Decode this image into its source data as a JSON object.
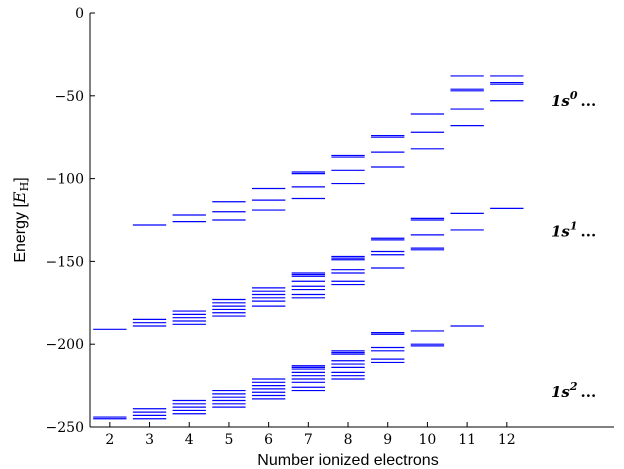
{
  "chart_data": {
    "type": "scatter",
    "mark": "horizontal level lines",
    "xlabel": "Number ionized electrons",
    "ylabel_text": "Energy [",
    "ylabel_unit_main": "E",
    "ylabel_unit_sub": "H",
    "ylabel_close": "]",
    "ylim": [
      -250,
      0
    ],
    "xlim": [
      1.5,
      14.7
    ],
    "x_ticks": [
      2,
      3,
      4,
      5,
      6,
      7,
      8,
      9,
      10,
      11,
      12
    ],
    "y_ticks": [
      0,
      -50,
      -100,
      -150,
      -200,
      -250
    ],
    "line_color": "#0000ff",
    "band_labels": [
      {
        "base": "1s",
        "sup": "0",
        "dots": "...",
        "y": -53
      },
      {
        "base": "1s",
        "sup": "1",
        "dots": "...",
        "y": -132
      },
      {
        "base": "1s",
        "sup": "2",
        "dots": "...",
        "y": -229
      }
    ],
    "levels": [
      {
        "x": 2,
        "energies": [
          -191,
          -244,
          -245
        ]
      },
      {
        "x": 3,
        "energies": [
          -128,
          -185,
          -187,
          -189,
          -239,
          -241,
          -243,
          -245
        ]
      },
      {
        "x": 4,
        "energies": [
          -122,
          -126,
          -180,
          -182,
          -184,
          -186,
          -188,
          -234,
          -236,
          -238,
          -240,
          -242
        ]
      },
      {
        "x": 5,
        "energies": [
          -114,
          -120,
          -125,
          -173,
          -175,
          -177,
          -179,
          -181,
          -183,
          -228,
          -230,
          -232,
          -234,
          -236,
          -238
        ]
      },
      {
        "x": 6,
        "energies": [
          -106,
          -113,
          -119,
          -166,
          -168,
          -170,
          -172,
          -174,
          -177,
          -221,
          -223,
          -225,
          -227,
          -229,
          -231,
          -233
        ]
      },
      {
        "x": 7,
        "energies": [
          -96,
          -97,
          -105,
          -112,
          -157,
          -158,
          -159,
          -162,
          -165,
          -167,
          -170,
          -172,
          -213,
          -214,
          -215,
          -217,
          -219,
          -221,
          -223,
          -226,
          -228
        ]
      },
      {
        "x": 8,
        "energies": [
          -86,
          -87,
          -95,
          -103,
          -147,
          -148,
          -149,
          -155,
          -157,
          -162,
          -164,
          -204,
          -205,
          -206,
          -210,
          -212,
          -214,
          -217,
          -219,
          -221
        ]
      },
      {
        "x": 9,
        "energies": [
          -74,
          -75,
          -84,
          -93,
          -136,
          -137,
          -144,
          -146,
          -154,
          -193,
          -194,
          -202,
          -204,
          -209,
          -211
        ]
      },
      {
        "x": 10,
        "energies": [
          -61,
          -72,
          -82,
          -124,
          -125,
          -134,
          -142,
          -143,
          -192,
          -200,
          -201
        ]
      },
      {
        "x": 11,
        "energies": [
          -38,
          -46,
          -47,
          -58,
          -68,
          -121,
          -131,
          -189
        ]
      },
      {
        "x": 12,
        "energies": [
          -38,
          -42,
          -43,
          -53,
          -118
        ]
      }
    ]
  }
}
